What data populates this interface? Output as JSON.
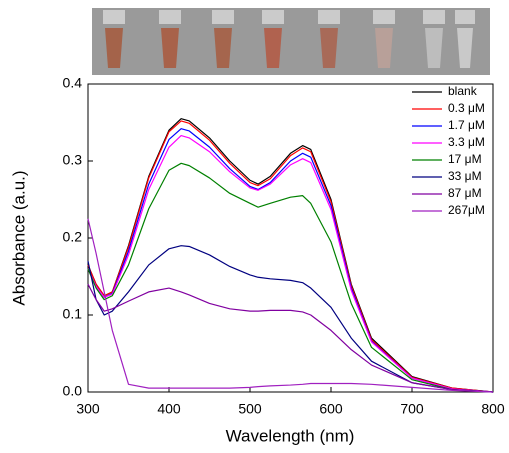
{
  "chart_data": {
    "type": "line",
    "x_label": "Wavelength (nm)",
    "y_label": "Absorbance (a.u.)",
    "x": [
      300,
      310,
      320,
      330,
      350,
      375,
      400,
      415,
      425,
      450,
      475,
      500,
      510,
      525,
      550,
      565,
      575,
      600,
      625,
      650,
      700,
      750,
      800
    ],
    "series": [
      {
        "name": "blank",
        "color": "#000000",
        "values": [
          0.165,
          0.14,
          0.125,
          0.13,
          0.19,
          0.28,
          0.34,
          0.355,
          0.352,
          0.33,
          0.3,
          0.275,
          0.27,
          0.28,
          0.31,
          0.32,
          0.315,
          0.25,
          0.14,
          0.07,
          0.02,
          0.005,
          0.0
        ]
      },
      {
        "name": "0.3 μM",
        "color": "#ff0000",
        "values": [
          0.165,
          0.14,
          0.125,
          0.13,
          0.188,
          0.278,
          0.338,
          0.352,
          0.349,
          0.327,
          0.297,
          0.272,
          0.268,
          0.277,
          0.307,
          0.317,
          0.312,
          0.247,
          0.138,
          0.068,
          0.019,
          0.005,
          0.0
        ]
      },
      {
        "name": "1.7 μM",
        "color": "#0000ff",
        "values": [
          0.16,
          0.137,
          0.123,
          0.128,
          0.183,
          0.27,
          0.328,
          0.342,
          0.339,
          0.318,
          0.29,
          0.267,
          0.263,
          0.272,
          0.3,
          0.31,
          0.305,
          0.242,
          0.135,
          0.066,
          0.018,
          0.004,
          0.0
        ]
      },
      {
        "name": "3.3 μM",
        "color": "#ff00ff",
        "values": [
          0.16,
          0.137,
          0.123,
          0.127,
          0.178,
          0.263,
          0.318,
          0.333,
          0.33,
          0.312,
          0.286,
          0.265,
          0.262,
          0.27,
          0.295,
          0.303,
          0.298,
          0.237,
          0.132,
          0.065,
          0.018,
          0.004,
          0.0
        ]
      },
      {
        "name": "17  μM",
        "color": "#008000",
        "values": [
          0.16,
          0.135,
          0.12,
          0.125,
          0.165,
          0.238,
          0.288,
          0.297,
          0.294,
          0.278,
          0.258,
          0.245,
          0.24,
          0.245,
          0.253,
          0.255,
          0.245,
          0.195,
          0.115,
          0.058,
          0.016,
          0.003,
          0.0
        ]
      },
      {
        "name": "33  μM",
        "color": "#000080",
        "values": [
          0.17,
          0.12,
          0.1,
          0.105,
          0.13,
          0.165,
          0.186,
          0.19,
          0.189,
          0.178,
          0.163,
          0.152,
          0.149,
          0.147,
          0.145,
          0.142,
          0.135,
          0.11,
          0.07,
          0.04,
          0.012,
          0.003,
          0.0
        ]
      },
      {
        "name": "87  μM",
        "color": "#8000a0",
        "values": [
          0.14,
          0.12,
          0.105,
          0.108,
          0.118,
          0.13,
          0.135,
          0.13,
          0.126,
          0.115,
          0.108,
          0.105,
          0.105,
          0.106,
          0.106,
          0.104,
          0.1,
          0.08,
          0.055,
          0.035,
          0.012,
          0.003,
          0.0
        ]
      },
      {
        "name": "267μM",
        "color": "#a020c0",
        "values": [
          0.225,
          0.18,
          0.13,
          0.08,
          0.01,
          0.005,
          0.005,
          0.005,
          0.005,
          0.005,
          0.005,
          0.006,
          0.007,
          0.008,
          0.009,
          0.01,
          0.011,
          0.011,
          0.011,
          0.01,
          0.006,
          0.002,
          0.0
        ]
      }
    ],
    "xlim": [
      300,
      800
    ],
    "xticks": [
      300,
      400,
      500,
      600,
      700,
      800
    ],
    "ylim": [
      0,
      0.4
    ],
    "yticks": [
      {
        "value": 0,
        "label": "0.0"
      },
      0.1,
      0.2,
      0.3,
      0.4
    ],
    "legend": "top-right",
    "grid": false
  }
}
